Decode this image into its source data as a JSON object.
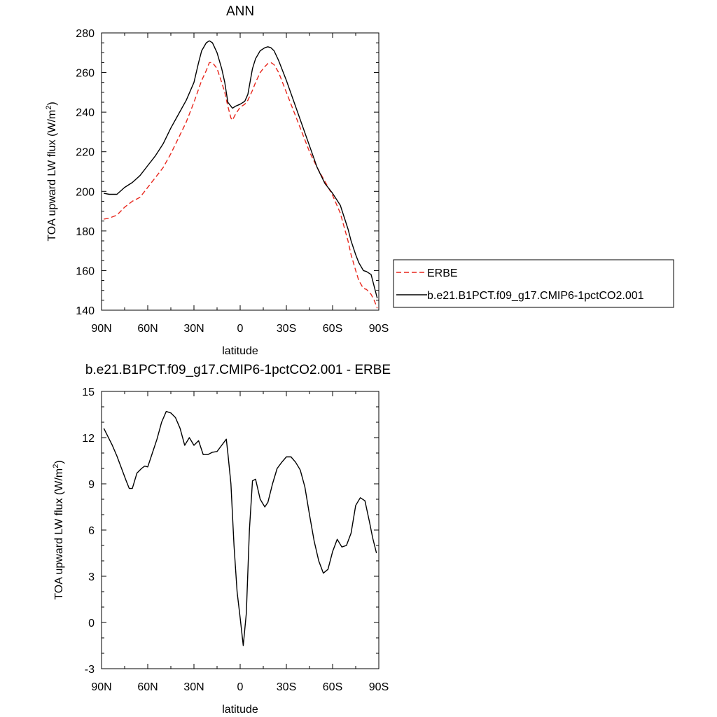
{
  "chart_data": [
    {
      "type": "line",
      "title": "ANN",
      "xlabel": "latitude",
      "ylabel": "TOA upward LW flux (W/m",
      "ylabel_sup": "2",
      "ylabel_end": ")",
      "xlim": [
        90,
        -90
      ],
      "ylim": [
        140,
        280
      ],
      "x_ticks": [
        90,
        60,
        30,
        0,
        -30,
        -60,
        -90
      ],
      "x_tick_labels": [
        "90N",
        "60N",
        "30N",
        "0",
        "30S",
        "60S",
        "90S"
      ],
      "y_ticks": [
        140,
        160,
        180,
        200,
        220,
        240,
        260,
        280
      ],
      "y_tick_labels": [
        "140",
        "160",
        "180",
        "200",
        "220",
        "240",
        "260",
        "280"
      ],
      "legend": {
        "placement": "right",
        "entries": [
          {
            "label": "ERBE",
            "style": "dashed",
            "color": "#e8271d"
          },
          {
            "label": "b.e21.B1PCT.f09_g17.CMIP6-1pctCO2.001",
            "style": "solid",
            "color": "#000000"
          }
        ]
      },
      "series": [
        {
          "name": "ERBE",
          "color": "#e8271d",
          "style": "dashed",
          "x": [
            88.5,
            85,
            80,
            75,
            70,
            65,
            60,
            55,
            50,
            45,
            40,
            35,
            30,
            25,
            22,
            20,
            18,
            15,
            12,
            10,
            8,
            6,
            5,
            3,
            0,
            -3,
            -5,
            -8,
            -10,
            -13,
            -16,
            -18,
            -20,
            -22,
            -25,
            -30,
            -35,
            -40,
            -45,
            -50,
            -55,
            -60,
            -65,
            -70,
            -72,
            -75,
            -77,
            -80,
            -82,
            -85,
            -87,
            -89
          ],
          "y": [
            186,
            186.5,
            188,
            192,
            195,
            197,
            202,
            207,
            212,
            219,
            227,
            235,
            245,
            256,
            261,
            265,
            265,
            262,
            255,
            250,
            243,
            237,
            236,
            239,
            242.5,
            244,
            246,
            251,
            255,
            260,
            263,
            264.5,
            265,
            264,
            260,
            250,
            240,
            230,
            220,
            212,
            205,
            198,
            189,
            175,
            168,
            160,
            155,
            151,
            150.5,
            148,
            145,
            141
          ]
        },
        {
          "name": "b.e21.B1PCT.f09_g17.CMIP6-1pctCO2.001",
          "color": "#000000",
          "style": "solid",
          "x": [
            88.5,
            85,
            80,
            75,
            70,
            65,
            60,
            55,
            50,
            45,
            40,
            35,
            30,
            27,
            25,
            22,
            20,
            18,
            15,
            12,
            10,
            8,
            6,
            5,
            3,
            0,
            -3,
            -5,
            -8,
            -10,
            -13,
            -16,
            -18,
            -20,
            -22,
            -25,
            -30,
            -35,
            -40,
            -45,
            -50,
            -55,
            -60,
            -65,
            -70,
            -72,
            -75,
            -77,
            -80,
            -82,
            -85,
            -87,
            -89
          ],
          "y": [
            199,
            198.5,
            198.5,
            202,
            204.5,
            208,
            213,
            218,
            224,
            232,
            239,
            246,
            255,
            265,
            271,
            275,
            276,
            275,
            270,
            262,
            255,
            245,
            243,
            242,
            243,
            244,
            245.5,
            249,
            262,
            267,
            271,
            272.5,
            273,
            272.5,
            271,
            266,
            256,
            245,
            234,
            223,
            212,
            204,
            199,
            193,
            181,
            175,
            168,
            164,
            160,
            159.5,
            158,
            152,
            146
          ]
        }
      ]
    },
    {
      "type": "line",
      "title": "b.e21.B1PCT.f09_g17.CMIP6-1pctCO2.001 - ERBE",
      "xlabel": "latitude",
      "ylabel": "TOA upward LW flux (W/m",
      "ylabel_sup": "2",
      "ylabel_end": ")",
      "xlim": [
        90,
        -90
      ],
      "ylim": [
        -3,
        15
      ],
      "x_ticks": [
        90,
        60,
        30,
        0,
        -30,
        -60,
        -90
      ],
      "x_tick_labels": [
        "90N",
        "60N",
        "30N",
        "0",
        "30S",
        "60S",
        "90S"
      ],
      "y_ticks": [
        -3,
        0,
        3,
        6,
        9,
        12,
        15
      ],
      "y_tick_labels": [
        "-3",
        "0",
        "3",
        "6",
        "9",
        "12",
        "15"
      ],
      "series": [
        {
          "color": "#000000",
          "style": "solid",
          "x": [
            88.5,
            86,
            83,
            80,
            77,
            74,
            72,
            70,
            67,
            64,
            62,
            60,
            57,
            54,
            51,
            48,
            45,
            42,
            39,
            36,
            33,
            30,
            27,
            24,
            21,
            18,
            15,
            12,
            9,
            8,
            6,
            4,
            2,
            0,
            -2,
            -4,
            -6,
            -8,
            -10,
            -13,
            -16,
            -18,
            -21,
            -24,
            -27,
            -30,
            -33,
            -36,
            -39,
            -42,
            -45,
            -48,
            -51,
            -54,
            -57,
            -60,
            -63,
            -66,
            -69,
            -72,
            -75,
            -78,
            -81,
            -84,
            -86,
            -88.5
          ],
          "y": [
            12.6,
            12.1,
            11.5,
            10.8,
            10.0,
            9.2,
            8.7,
            8.7,
            9.7,
            10.0,
            10.15,
            10.1,
            11.0,
            11.9,
            13.0,
            13.7,
            13.6,
            13.3,
            12.6,
            11.5,
            12.0,
            11.5,
            11.8,
            10.9,
            10.9,
            11.05,
            11.1,
            11.5,
            11.9,
            11.0,
            9.0,
            5.0,
            2.0,
            0.3,
            -1.5,
            0.6,
            6.0,
            9.2,
            9.3,
            8.0,
            7.5,
            7.8,
            9.0,
            10.0,
            10.4,
            10.75,
            10.75,
            10.4,
            9.9,
            8.8,
            7.0,
            5.3,
            4.0,
            3.2,
            3.45,
            4.6,
            5.4,
            4.9,
            5.0,
            5.8,
            7.6,
            8.1,
            7.9,
            6.5,
            5.5,
            4.5
          ]
        }
      ]
    }
  ]
}
